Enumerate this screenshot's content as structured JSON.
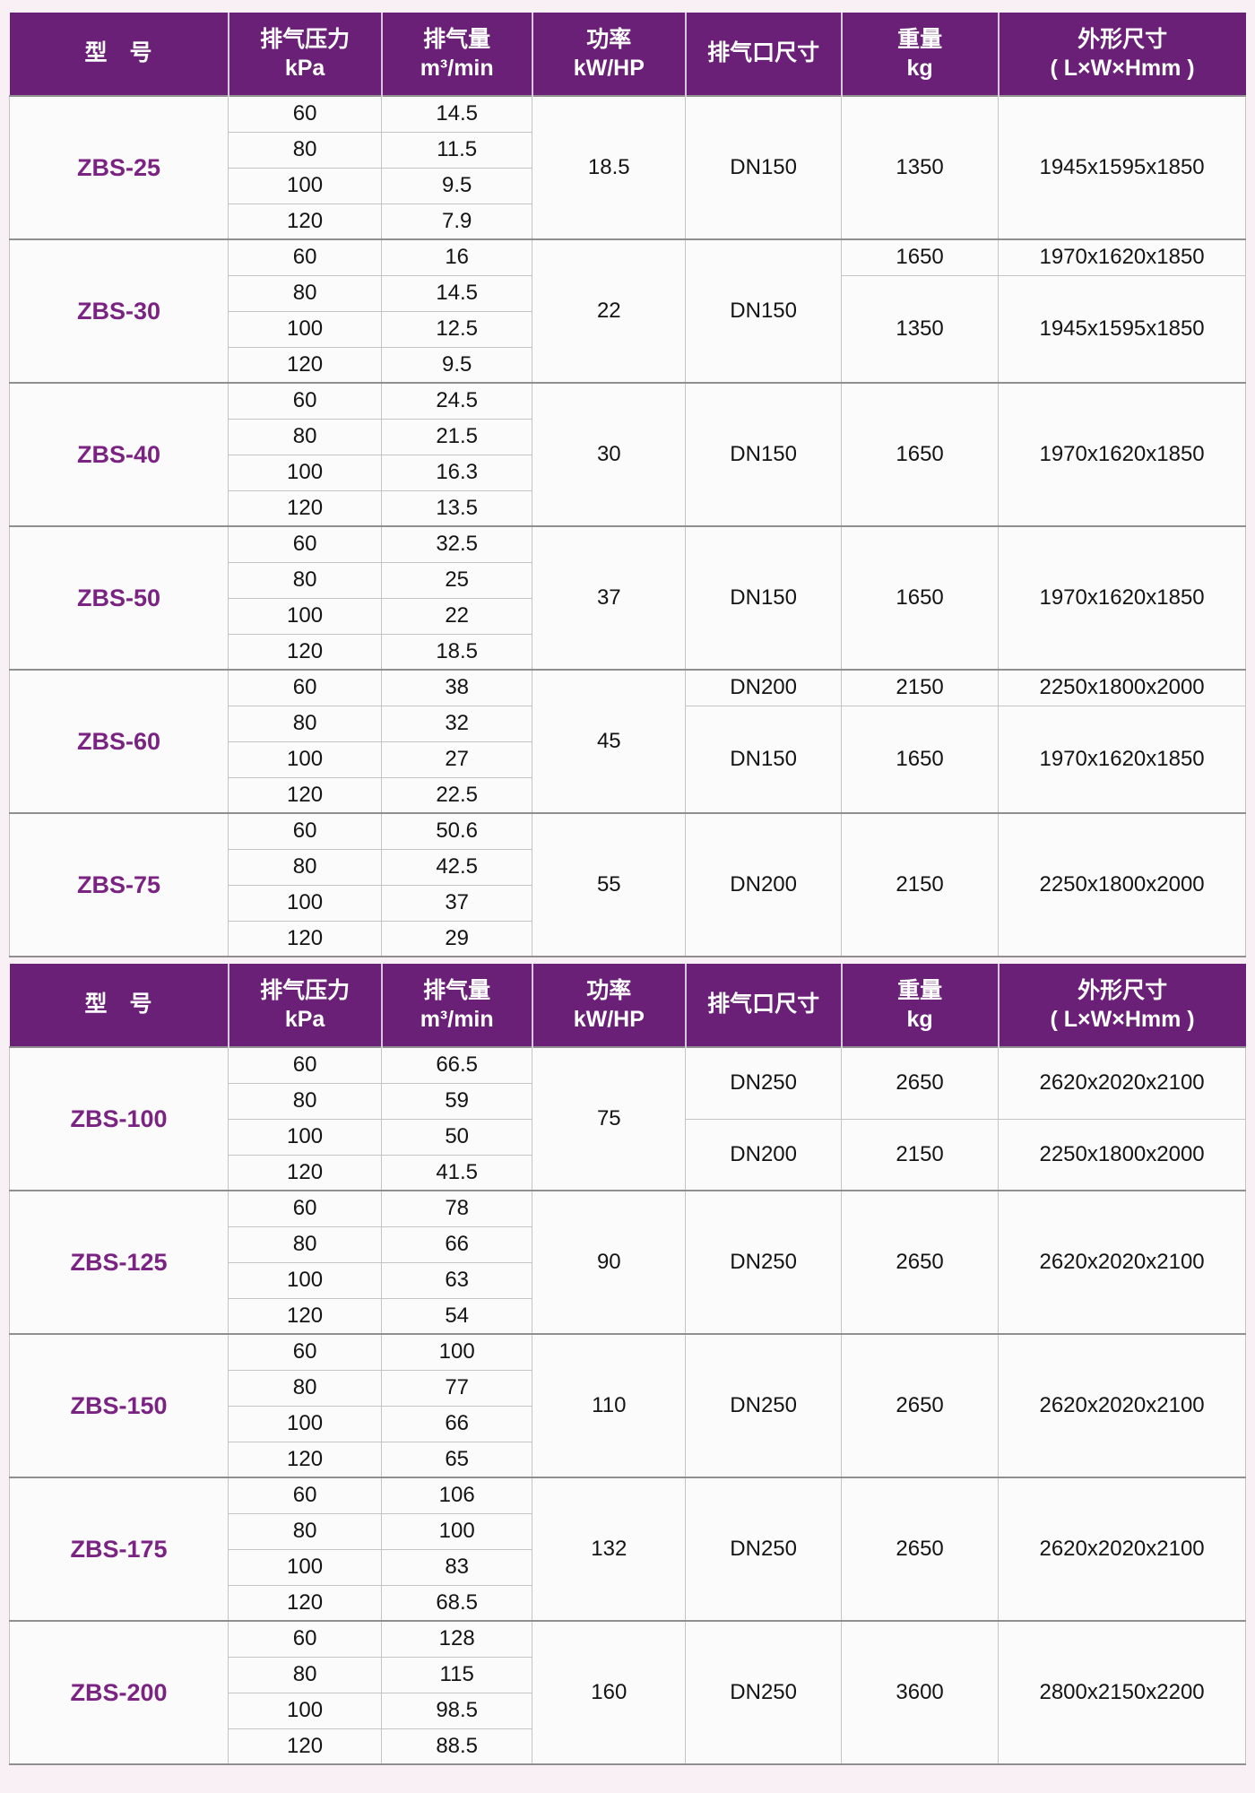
{
  "colors": {
    "header_bg": "#6b2077",
    "header_text": "#ffffff",
    "model_text": "#7b2383",
    "cell_text": "#141414",
    "page_bg": "#f8f0f5"
  },
  "columns": [
    {
      "id": "model",
      "label": "型　号",
      "sub": ""
    },
    {
      "id": "kpa",
      "label": "排气压力",
      "sub": "kPa"
    },
    {
      "id": "vol",
      "label": "排气量",
      "sub": "m³/min"
    },
    {
      "id": "power",
      "label": "功率",
      "sub": "kW/HP"
    },
    {
      "id": "port",
      "label": "排气口尺寸",
      "sub": ""
    },
    {
      "id": "weight",
      "label": "重量",
      "sub": "kg"
    },
    {
      "id": "dims",
      "label": "外形尺寸",
      "sub": "( L×W×Hmm )"
    }
  ],
  "tables": [
    {
      "name": "upper",
      "models": [
        {
          "model": "ZBS-25",
          "rows": [
            [
              "60",
              "14.5"
            ],
            [
              "80",
              "11.5"
            ],
            [
              "100",
              "9.5"
            ],
            [
              "120",
              "7.9"
            ]
          ],
          "power": "18.5",
          "port": [
            {
              "span": 4,
              "v": "DN150"
            }
          ],
          "weight": [
            {
              "span": 4,
              "v": "1350"
            }
          ],
          "dims": [
            {
              "span": 4,
              "v": "1945x1595x1850"
            }
          ]
        },
        {
          "model": "ZBS-30",
          "rows": [
            [
              "60",
              "16"
            ],
            [
              "80",
              "14.5"
            ],
            [
              "100",
              "12.5"
            ],
            [
              "120",
              "9.5"
            ]
          ],
          "power": "22",
          "port": [
            {
              "span": 4,
              "v": "DN150"
            }
          ],
          "weight": [
            {
              "span": 1,
              "v": "1650"
            },
            {
              "span": 3,
              "v": "1350"
            }
          ],
          "dims": [
            {
              "span": 1,
              "v": "1970x1620x1850"
            },
            {
              "span": 3,
              "v": "1945x1595x1850"
            }
          ]
        },
        {
          "model": "ZBS-40",
          "rows": [
            [
              "60",
              "24.5"
            ],
            [
              "80",
              "21.5"
            ],
            [
              "100",
              "16.3"
            ],
            [
              "120",
              "13.5"
            ]
          ],
          "power": "30",
          "port": [
            {
              "span": 4,
              "v": "DN150"
            }
          ],
          "weight": [
            {
              "span": 4,
              "v": "1650"
            }
          ],
          "dims": [
            {
              "span": 4,
              "v": "1970x1620x1850"
            }
          ]
        },
        {
          "model": "ZBS-50",
          "rows": [
            [
              "60",
              "32.5"
            ],
            [
              "80",
              "25"
            ],
            [
              "100",
              "22"
            ],
            [
              "120",
              "18.5"
            ]
          ],
          "power": "37",
          "port": [
            {
              "span": 4,
              "v": "DN150"
            }
          ],
          "weight": [
            {
              "span": 4,
              "v": "1650"
            }
          ],
          "dims": [
            {
              "span": 4,
              "v": "1970x1620x1850"
            }
          ]
        },
        {
          "model": "ZBS-60",
          "rows": [
            [
              "60",
              "38"
            ],
            [
              "80",
              "32"
            ],
            [
              "100",
              "27"
            ],
            [
              "120",
              "22.5"
            ]
          ],
          "power": "45",
          "port": [
            {
              "span": 1,
              "v": "DN200"
            },
            {
              "span": 3,
              "v": "DN150"
            }
          ],
          "weight": [
            {
              "span": 1,
              "v": "2150"
            },
            {
              "span": 3,
              "v": "1650"
            }
          ],
          "dims": [
            {
              "span": 1,
              "v": "2250x1800x2000"
            },
            {
              "span": 3,
              "v": "1970x1620x1850"
            }
          ]
        },
        {
          "model": "ZBS-75",
          "rows": [
            [
              "60",
              "50.6"
            ],
            [
              "80",
              "42.5"
            ],
            [
              "100",
              "37"
            ],
            [
              "120",
              "29"
            ]
          ],
          "power": "55",
          "port": [
            {
              "span": 4,
              "v": "DN200"
            }
          ],
          "weight": [
            {
              "span": 4,
              "v": "2150"
            }
          ],
          "dims": [
            {
              "span": 4,
              "v": "2250x1800x2000"
            }
          ]
        }
      ]
    },
    {
      "name": "lower",
      "models": [
        {
          "model": "ZBS-100",
          "rows": [
            [
              "60",
              "66.5"
            ],
            [
              "80",
              "59"
            ],
            [
              "100",
              "50"
            ],
            [
              "120",
              "41.5"
            ]
          ],
          "power": "75",
          "port": [
            {
              "span": 2,
              "v": "DN250"
            },
            {
              "span": 2,
              "v": "DN200"
            }
          ],
          "weight": [
            {
              "span": 2,
              "v": "2650"
            },
            {
              "span": 2,
              "v": "2150"
            }
          ],
          "dims": [
            {
              "span": 2,
              "v": "2620x2020x2100"
            },
            {
              "span": 2,
              "v": "2250x1800x2000"
            }
          ]
        },
        {
          "model": "ZBS-125",
          "rows": [
            [
              "60",
              "78"
            ],
            [
              "80",
              "66"
            ],
            [
              "100",
              "63"
            ],
            [
              "120",
              "54"
            ]
          ],
          "power": "90",
          "port": [
            {
              "span": 4,
              "v": "DN250"
            }
          ],
          "weight": [
            {
              "span": 4,
              "v": "2650"
            }
          ],
          "dims": [
            {
              "span": 4,
              "v": "2620x2020x2100"
            }
          ]
        },
        {
          "model": "ZBS-150",
          "rows": [
            [
              "60",
              "100"
            ],
            [
              "80",
              "77"
            ],
            [
              "100",
              "66"
            ],
            [
              "120",
              "65"
            ]
          ],
          "power": "110",
          "port": [
            {
              "span": 4,
              "v": "DN250"
            }
          ],
          "weight": [
            {
              "span": 4,
              "v": "2650"
            }
          ],
          "dims": [
            {
              "span": 4,
              "v": "2620x2020x2100"
            }
          ]
        },
        {
          "model": "ZBS-175",
          "rows": [
            [
              "60",
              "106"
            ],
            [
              "80",
              "100"
            ],
            [
              "100",
              "83"
            ],
            [
              "120",
              "68.5"
            ]
          ],
          "power": "132",
          "port": [
            {
              "span": 4,
              "v": "DN250"
            }
          ],
          "weight": [
            {
              "span": 4,
              "v": "2650"
            }
          ],
          "dims": [
            {
              "span": 4,
              "v": "2620x2020x2100"
            }
          ]
        },
        {
          "model": "ZBS-200",
          "rows": [
            [
              "60",
              "128"
            ],
            [
              "80",
              "115"
            ],
            [
              "100",
              "98.5"
            ],
            [
              "120",
              "88.5"
            ]
          ],
          "power": "160",
          "port": [
            {
              "span": 4,
              "v": "DN250"
            }
          ],
          "weight": [
            {
              "span": 4,
              "v": "3600"
            }
          ],
          "dims": [
            {
              "span": 4,
              "v": "2800x2150x2200"
            }
          ]
        }
      ]
    }
  ]
}
